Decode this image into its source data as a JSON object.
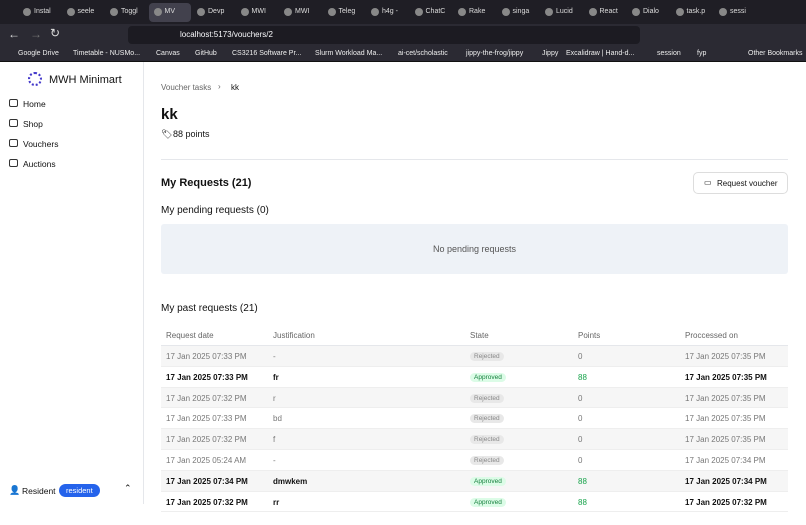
{
  "browser": {
    "tabs": [
      "Instal",
      "seele",
      "Toggl",
      "MV",
      "Devp",
      "MWI",
      "MWI",
      "Teleg",
      "h4g -",
      "ChatC",
      "Rake",
      "singa",
      "Lucid",
      "React",
      "Dialo",
      "task.p",
      "sessi"
    ],
    "active_tab": 3,
    "url": "localhost:5173/vouchers/2",
    "bookmarks": [
      "Google Drive",
      "Timetable - NUSMo...",
      "Canvas",
      "GitHub",
      "CS3216 Software Pr...",
      "Slurm Workload Ma...",
      "ai-cet/scholastic",
      "jippy-the-frog/jippy",
      "Jippy",
      "Excalidraw | Hand-d...",
      "session",
      "fyp"
    ],
    "other_bookmarks": "Other Bookmarks"
  },
  "sidebar": {
    "brand": "MWH Minimart",
    "nav": [
      "Home",
      "Shop",
      "Vouchers",
      "Auctions"
    ],
    "user": "Resident",
    "role": "resident"
  },
  "main": {
    "breadcrumb": [
      "Voucher tasks",
      "kk"
    ],
    "title": "kk",
    "points": "88 points",
    "requests_heading": "My Requests (21)",
    "request_button": "Request voucher",
    "pending_heading": "My pending requests (0)",
    "pending_empty": "No pending requests",
    "past_heading": "My past requests (21)",
    "table": {
      "columns": [
        "Request date",
        "Justification",
        "State",
        "Points",
        "Proccessed on"
      ],
      "rows": [
        [
          "17 Jan 2025 07:33 PM",
          "-",
          "Rejected",
          0,
          "17 Jan 2025 07:35 PM"
        ],
        [
          "17 Jan 2025 07:33 PM",
          "fr",
          "Approved",
          88,
          "17 Jan 2025 07:35 PM"
        ],
        [
          "17 Jan 2025 07:32 PM",
          "r",
          "Rejected",
          0,
          "17 Jan 2025 07:35 PM"
        ],
        [
          "17 Jan 2025 07:33 PM",
          "bd",
          "Rejected",
          0,
          "17 Jan 2025 07:35 PM"
        ],
        [
          "17 Jan 2025 07:32 PM",
          "f",
          "Rejected",
          0,
          "17 Jan 2025 07:35 PM"
        ],
        [
          "17 Jan 2025 05:24 AM",
          "-",
          "Rejected",
          0,
          "17 Jan 2025 07:34 PM"
        ],
        [
          "17 Jan 2025 07:34 PM",
          "dmwkem",
          "Approved",
          88,
          "17 Jan 2025 07:34 PM"
        ],
        [
          "17 Jan 2025 07:32 PM",
          "rr",
          "Approved",
          88,
          "17 Jan 2025 07:32 PM"
        ]
      ]
    }
  }
}
